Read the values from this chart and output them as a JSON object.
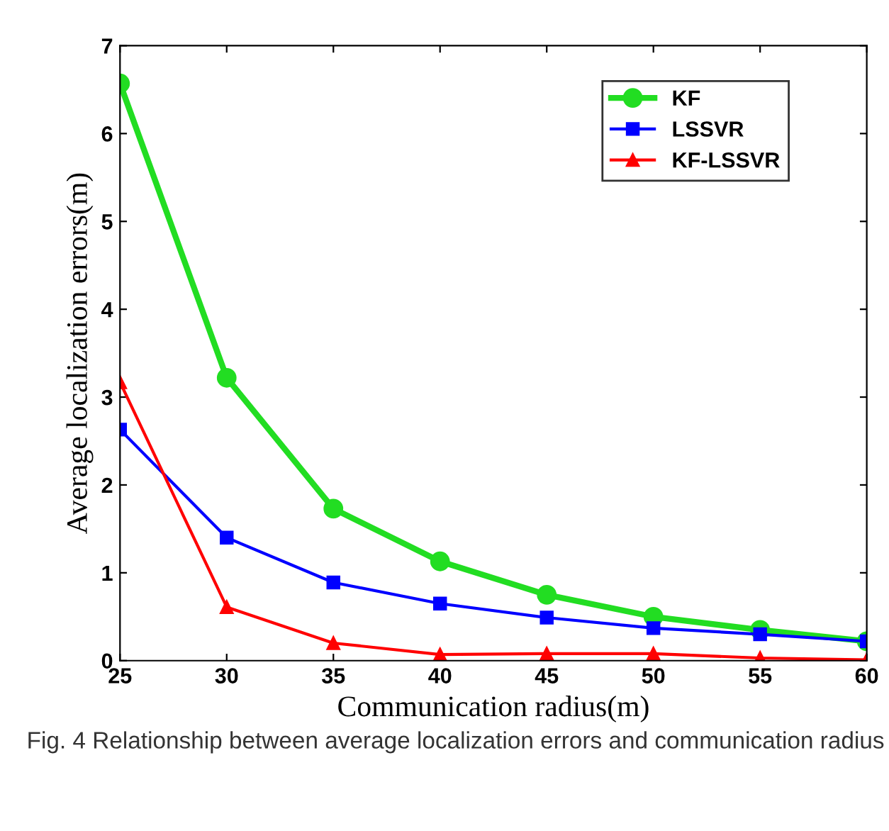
{
  "chart_data": {
    "type": "line",
    "xlabel": "Communication radius(m)",
    "ylabel": "Average localization errors(m)",
    "x": [
      25,
      30,
      35,
      40,
      45,
      50,
      55,
      60
    ],
    "series": [
      {
        "name": "KF",
        "color": "#22dd22",
        "marker": "circle",
        "values": [
          6.57,
          3.22,
          1.73,
          1.13,
          0.75,
          0.5,
          0.35,
          0.22
        ]
      },
      {
        "name": "LSSVR",
        "color": "#0000ff",
        "marker": "square",
        "values": [
          2.63,
          1.4,
          0.89,
          0.65,
          0.49,
          0.37,
          0.3,
          0.22
        ]
      },
      {
        "name": "KF-LSSVR",
        "color": "#ff0000",
        "marker": "triangle",
        "values": [
          3.17,
          0.61,
          0.2,
          0.07,
          0.08,
          0.08,
          0.03,
          0.01
        ]
      }
    ],
    "xlim": [
      25,
      60
    ],
    "xticks": [
      25,
      30,
      35,
      40,
      45,
      50,
      55,
      60
    ],
    "ylim": [
      0,
      7
    ],
    "yticks": [
      0,
      1,
      2,
      3,
      4,
      5,
      6,
      7
    ],
    "grid": false,
    "legend": "top right",
    "line_style": "solid",
    "annotations": [
      "Fig. 4 Relationship between average localization errors and communication radius"
    ]
  }
}
